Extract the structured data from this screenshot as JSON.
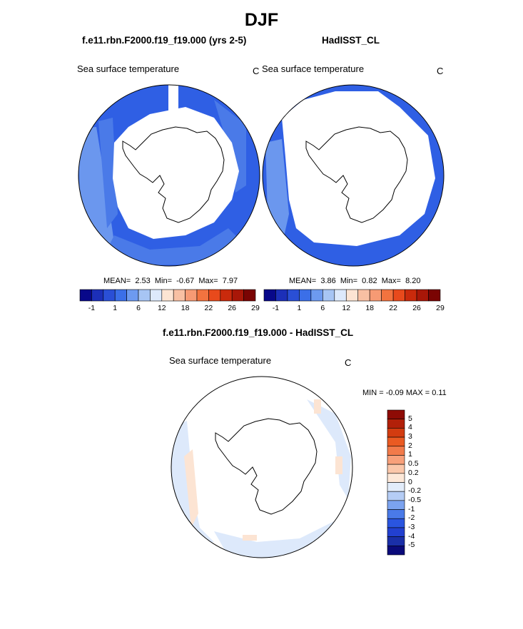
{
  "title": "DJF",
  "panels": [
    {
      "case": "f.e11.rbn.F2000.f19_f19.000 (yrs 2-5)",
      "variable": "Sea surface temperature",
      "units": "C",
      "stats": {
        "mean_label": "MEAN=",
        "mean": "2.53",
        "min_label": "Min=",
        "min": "-0.67",
        "max_label": "Max=",
        "max": "7.97"
      }
    },
    {
      "case": "HadISST_CL",
      "variable": "Sea surface temperature",
      "units": "C",
      "stats": {
        "mean_label": "MEAN=",
        "mean": "3.86",
        "min_label": "Min=",
        "min": "0.82",
        "max_label": "Max=",
        "max": "8.20"
      }
    }
  ],
  "diff": {
    "title": "f.e11.rbn.F2000.f19_f19.000 - HadISST_CL",
    "variable": "Sea surface temperature",
    "units": "C",
    "minmax": "MIN =  -0.09 MAX =   0.11"
  },
  "colorbar": {
    "colors": [
      "#08088a",
      "#1c2fb8",
      "#2a4fd6",
      "#3b6fe8",
      "#6d9af0",
      "#a7c5f4",
      "#dde9fb",
      "#fce4d3",
      "#f8c0a3",
      "#f69a74",
      "#f2733f",
      "#e84a1c",
      "#c92a0c",
      "#a81708",
      "#7a0403"
    ],
    "labels": [
      "-1",
      "1",
      "6",
      "12",
      "18",
      "22",
      "26",
      "29"
    ]
  },
  "diff_colorbar": {
    "colors": [
      "#0a0a7a",
      "#1a2fa8",
      "#2240d0",
      "#2a55e0",
      "#4a7ae8",
      "#7ba3ef",
      "#b5cdf5",
      "#e2ecfa",
      "#fde8d8",
      "#fbc7aa",
      "#f8a07a",
      "#f27a4a",
      "#ea5a22",
      "#d33c10",
      "#b22009",
      "#8e0b05"
    ],
    "labels": [
      "5",
      "4",
      "3",
      "2",
      "1",
      "0.5",
      "0.2",
      "0",
      "-0.2",
      "-0.5",
      "-1",
      "-2",
      "-3",
      "-4",
      "-5"
    ]
  }
}
